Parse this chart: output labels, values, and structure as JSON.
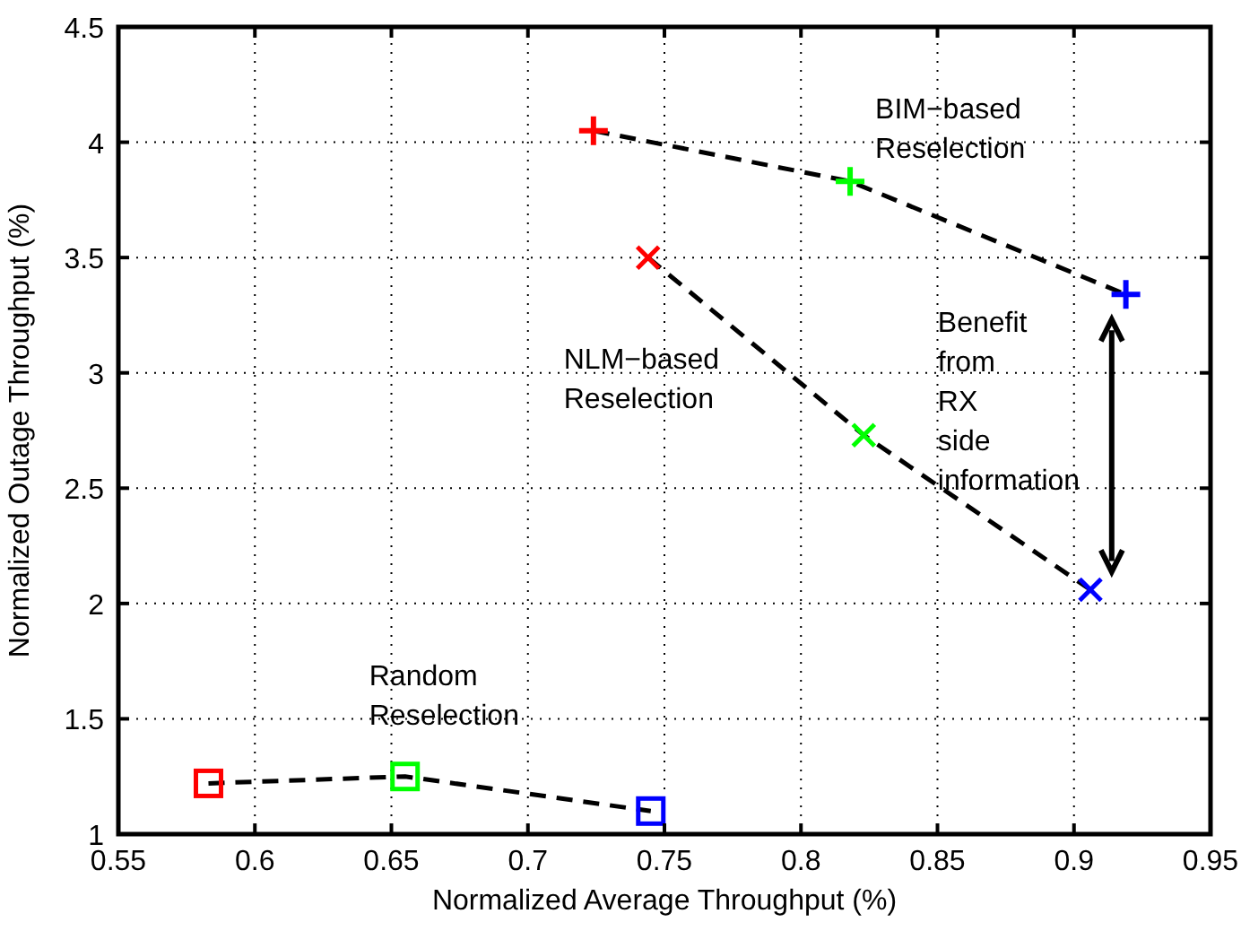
{
  "chart_data": {
    "type": "line",
    "xlabel": "Normalized Average Throughput (%)",
    "ylabel": "Normalized Outage Throughput (%)",
    "xlim": [
      0.55,
      0.95
    ],
    "ylim": [
      1,
      4.5
    ],
    "xticks": [
      0.55,
      0.6,
      0.65,
      0.7,
      0.75,
      0.8,
      0.85,
      0.9,
      0.95
    ],
    "yticks": [
      1,
      1.5,
      2,
      2.5,
      3,
      3.5,
      4,
      4.5
    ],
    "grid": true,
    "line_style": "dashed",
    "series": [
      {
        "name": "BIM−based\nReselection",
        "color": "#000000",
        "marker": "plus",
        "colors": [
          "#ff0000",
          "#00ff00",
          "#0000ff"
        ],
        "x": [
          0.724,
          0.818,
          0.919
        ],
        "values": [
          4.05,
          3.83,
          3.34
        ]
      },
      {
        "name": "NLM−based\nReselection",
        "color": "#000000",
        "marker": "cross",
        "colors": [
          "#ff0000",
          "#00ff00",
          "#0000ff"
        ],
        "x": [
          0.744,
          0.823,
          0.906
        ],
        "values": [
          3.5,
          2.73,
          2.06
        ]
      },
      {
        "name": "Random\nReselection",
        "color": "#000000",
        "marker": "square",
        "colors": [
          "#ff0000",
          "#00ff00",
          "#0000ff"
        ],
        "x": [
          0.583,
          0.655,
          0.745
        ],
        "values": [
          1.22,
          1.25,
          1.1
        ]
      }
    ],
    "annotations": [
      "Benefit\nfrom\nRX\nside\ninformation"
    ]
  }
}
